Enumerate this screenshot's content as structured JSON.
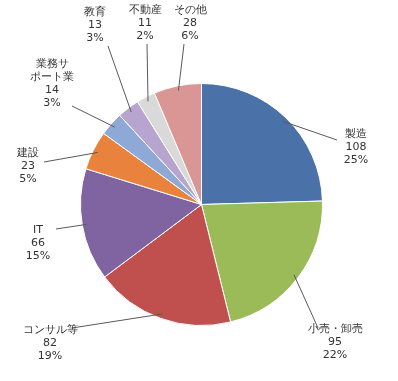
{
  "chart_data": {
    "type": "pie",
    "categories": [
      "製造",
      "小売・卸売",
      "コンサル等",
      "IT",
      "建設",
      "業務サポート業",
      "教育",
      "不動産",
      "その他"
    ],
    "values": [
      108,
      95,
      82,
      66,
      23,
      14,
      13,
      11,
      28
    ],
    "percent_labels": [
      "25%",
      "22%",
      "19%",
      "15%",
      "5%",
      "3%",
      "3%",
      "2%",
      "6%"
    ],
    "colors": [
      "#4a71a8",
      "#9bbb59",
      "#c0504d",
      "#8064a2",
      "#e8823c",
      "#8ea9d6",
      "#b7a5cf",
      "#d9d9d9",
      "#d99694"
    ],
    "data_labels": true
  }
}
